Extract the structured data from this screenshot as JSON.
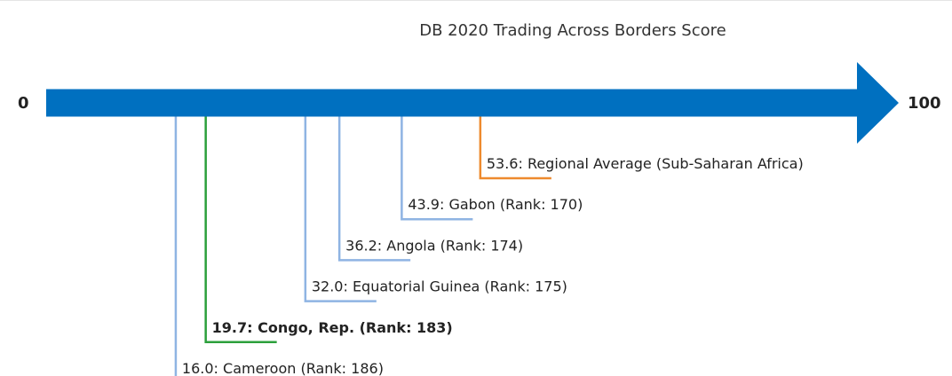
{
  "chart_data": {
    "type": "number-line",
    "title": "DB 2020 Trading Across Borders Score",
    "xlim": [
      0,
      100
    ],
    "xticks": [
      0,
      100
    ],
    "arrow_color": "#0070c0",
    "label_separator": ": ",
    "categories": [
      "Regional Average (Sub-Saharan Africa)",
      "Gabon (Rank: 170)",
      "Angola (Rank: 174)",
      "Equatorial Guinea (Rank: 175)",
      "Congo, Rep. (Rank: 183)",
      "Cameroon (Rank: 186)"
    ],
    "values": [
      53.6,
      43.9,
      36.2,
      32,
      19.7,
      16
    ],
    "value_labels": [
      "53.6",
      "43.9",
      "36.2",
      "32.0",
      "19.7",
      "16.0"
    ],
    "colors": [
      "#ee8a2e",
      "#8fb4e3",
      "#8fb4e3",
      "#8fb4e3",
      "#2ca03c",
      "#8fb4e3"
    ],
    "bold": [
      false,
      false,
      false,
      false,
      true,
      false
    ]
  }
}
